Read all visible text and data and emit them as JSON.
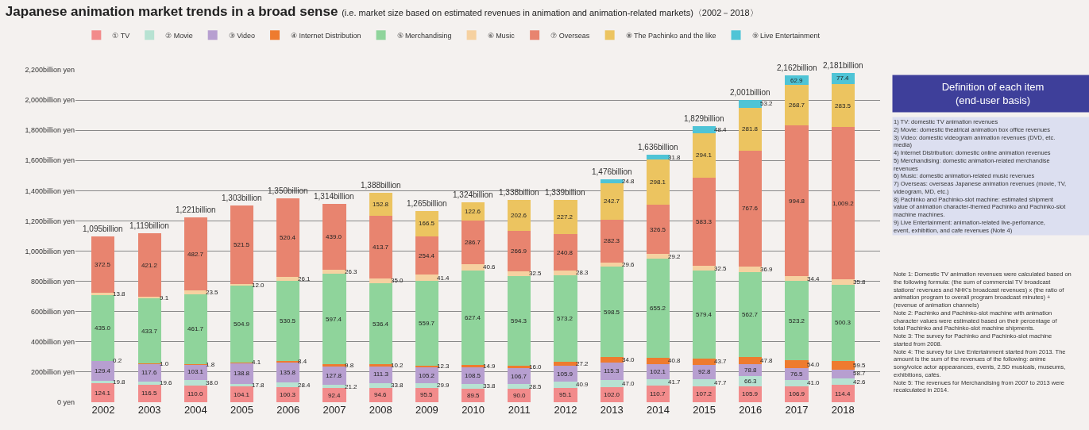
{
  "chart_data": {
    "type": "bar",
    "stacked": true,
    "title": "Japanese animation market trends in a broad sense",
    "subtitle": "(i.e. market size based on estimated revenues in animation and animation-related markets)〈2002－2018〉",
    "categories": [
      "2002",
      "2003",
      "2004",
      "2005",
      "2006",
      "2007",
      "2008",
      "2009",
      "2010",
      "2011",
      "2012",
      "2013",
      "2014",
      "2015",
      "2016",
      "2017",
      "2018"
    ],
    "series": [
      {
        "name": "① TV",
        "color": "#f28b8b",
        "values": [
          124.1,
          116.5,
          110.0,
          104.1,
          100.3,
          92.4,
          94.6,
          95.5,
          89.5,
          90.0,
          95.1,
          102.0,
          110.7,
          107.2,
          105.9,
          106.9,
          114.4
        ],
        "value_labels": [
          "124.1",
          "116.5",
          "110.0",
          "104.1",
          "100.3",
          "92.4",
          "94.6",
          "95.5",
          "89.5",
          "90.0",
          "95.1",
          "102.0",
          "110.7",
          "107.2",
          "105.9",
          "106.9",
          "114.4"
        ]
      },
      {
        "name": "② Movie",
        "color": "#b7e2d2",
        "values": [
          19.8,
          19.6,
          38.0,
          17.8,
          28.4,
          21.2,
          33.8,
          29.9,
          33.8,
          28.5,
          40.9,
          47.0,
          41.7,
          47.7,
          66.3,
          41.0,
          42.6
        ],
        "value_labels": [
          "19.8",
          "19.6",
          "38.0",
          "17.8",
          "28.4",
          "21.2",
          "33.8",
          "29.9",
          "33.8",
          "28.5",
          "40.9",
          "47.0",
          "41.7",
          "47.7",
          "66.3",
          "41.0",
          "42.6"
        ]
      },
      {
        "name": "③ Video",
        "color": "#b79fd0",
        "values": [
          129.4,
          117.6,
          103.1,
          138.8,
          135.8,
          127.8,
          111.3,
          105.2,
          108.5,
          106.7,
          105.9,
          115.3,
          102.1,
          92.8,
          78.8,
          76.5,
          58.7
        ],
        "value_labels": [
          "129.4",
          "117.6",
          "103.1",
          "138.8",
          "135.8",
          "127.8",
          "111.3",
          "105.2",
          "108.5",
          "106.7",
          "105.9",
          "115.3",
          "102.1",
          "92.8",
          "78.8",
          "76.5",
          "58.7"
        ]
      },
      {
        "name": "④ Internet Distribution",
        "color": "#ee7b2f",
        "values": [
          0.2,
          1.0,
          1.8,
          4.1,
          8.4,
          9.8,
          10.2,
          12.3,
          14.9,
          16.0,
          27.2,
          34.0,
          40.8,
          43.7,
          47.8,
          54.0,
          59.5
        ],
        "value_labels": [
          "0.2",
          "1.0",
          "1.8",
          "4.1",
          "8.4",
          "9.8",
          "10.2",
          "12.3",
          "14.9",
          "16.0",
          "27.2",
          "34.0",
          "40.8",
          "43.7",
          "47.8",
          "54.0",
          "59.5"
        ]
      },
      {
        "name": "⑤ Merchandising",
        "color": "#8fd49b",
        "values": [
          435.0,
          433.7,
          461.7,
          504.9,
          530.5,
          597.4,
          536.4,
          559.7,
          627.4,
          594.3,
          573.2,
          598.5,
          655.2,
          579.4,
          562.7,
          523.2,
          500.3
        ],
        "value_labels": [
          "435.0",
          "433.7",
          "461.7",
          "504.9",
          "530.5",
          "597.4",
          "536.4",
          "559.7",
          "627.4",
          "594.3",
          "573.2",
          "598.5",
          "655.2",
          "579.4",
          "562.7",
          "523.2",
          "500.3"
        ]
      },
      {
        "name": "⑥ Music",
        "color": "#f6d1a0",
        "values": [
          13.8,
          9.1,
          23.5,
          12.0,
          26.1,
          26.3,
          35.0,
          41.4,
          40.6,
          32.5,
          28.3,
          29.6,
          29.2,
          32.5,
          36.9,
          34.4,
          35.8
        ],
        "value_labels": [
          "13.8",
          "9.1",
          "23.5",
          "12.0",
          "26.1",
          "26.3",
          "35.0",
          "41.4",
          "40.6",
          "32.5",
          "28.3",
          "29.6",
          "29.2",
          "32.5",
          "36.9",
          "34.4",
          "35.8"
        ]
      },
      {
        "name": "⑦ Overseas",
        "color": "#e8846f",
        "values": [
          372.5,
          421.2,
          482.7,
          521.5,
          520.4,
          439.0,
          413.7,
          254.4,
          286.7,
          266.9,
          240.8,
          282.3,
          326.5,
          583.3,
          767.6,
          994.8,
          1009.2
        ],
        "value_labels": [
          "372.5",
          "421.2",
          "482.7",
          "521.5",
          "520.4",
          "439.0",
          "413.7",
          "254.4",
          "286.7",
          "266.9",
          "240.8",
          "282.3",
          "326.5",
          "583.3",
          "767.6",
          "994.8",
          "1,009.2"
        ]
      },
      {
        "name": "⑧ The Pachinko and the like",
        "color": "#ecc460",
        "values": [
          null,
          null,
          null,
          null,
          null,
          null,
          152.8,
          166.5,
          122.6,
          202.6,
          227.2,
          242.7,
          298.1,
          294.1,
          281.8,
          268.7,
          283.5
        ],
        "value_labels": [
          null,
          null,
          null,
          null,
          null,
          null,
          "152.8",
          "166.5",
          "122.6",
          "202.6",
          "227.2",
          "242.7",
          "298.1",
          "294.1",
          "281.8",
          "268.7",
          "283.5"
        ]
      },
      {
        "name": "⑨ Live Entertainment",
        "color": "#4fc4d6",
        "values": [
          null,
          null,
          null,
          null,
          null,
          null,
          null,
          null,
          null,
          null,
          null,
          24.8,
          31.8,
          48.4,
          53.2,
          62.9,
          77.4
        ],
        "value_labels": [
          null,
          null,
          null,
          null,
          null,
          null,
          null,
          null,
          null,
          null,
          null,
          "24.8",
          "31.8",
          "48.4",
          "53.2",
          "62.9",
          "77.4"
        ]
      }
    ],
    "totals": [
      "1,095billion",
      "1,119billion",
      "1,221billion",
      "1,303billion",
      "1,350billion",
      "1,314billion",
      "1,388billion",
      "1,265billion",
      "1,324billion",
      "1,338billion",
      "1,339billion",
      "1,476billion",
      "1,636billion",
      "1,829billion",
      "2,001billion",
      "2,162billion",
      "2,181billion"
    ],
    "ylim": [
      0,
      2200
    ],
    "yticks": [
      {
        "value": 0,
        "label": "0 yen"
      },
      {
        "value": 200,
        "label": "200billion yen"
      },
      {
        "value": 400,
        "label": "400billion yen"
      },
      {
        "value": 600,
        "label": "600billion yen"
      },
      {
        "value": 800,
        "label": "800billion yen"
      },
      {
        "value": 1000,
        "label": "1,000billion yen"
      },
      {
        "value": 1200,
        "label": "1,200billion yen"
      },
      {
        "value": 1400,
        "label": "1,400billion yen"
      },
      {
        "value": 1600,
        "label": "1,600billion yen"
      },
      {
        "value": 1800,
        "label": "1,800billion yen"
      },
      {
        "value": 2000,
        "label": "2,000billion yen"
      },
      {
        "value": 2200,
        "label": "2,200billion yen"
      }
    ],
    "grid": "y",
    "legend": "top",
    "annotations": [
      "Definition of each item (end-user basis)",
      "1) TV: domestic TV animation revenues",
      "2) Movie: domestic theatrical animation box office revenues",
      "3) Video: domestic videogram animation revenues (DVD, etc. media)",
      "4) Internet Distribution: domestic online animation revenues",
      "5) Merchandising: domestic animation-related merchandise revenues",
      "6) Music: domestic animation-related music revenues",
      "7) Overseas: overseas Japanese animation revenues (movie, TV, videogram, MD, etc.)",
      "8) Pachinko and Pachinko-slot machine: estimated shipment value of animation character-themed Pachinko and Pachinko-slot machine machines.",
      "9) Live Entertainment: animation-related live-perfomance, event, exhibition, and cafe revenues (Note 4)",
      "Note 1: Domestic TV animation revenues were calculated based on the following formula: (the sum of commercial TV broadcast stations' revenues and NHK's broadcast revenues) x (the ratio of animation program to overall program broadcast minutes) + (revenue of animation channels)",
      "Note 2: Pachinko and Pachinko-slot machine with animation character values were estimated based on their percentage of total Pachinko and Pachinko-slot machine shipments.",
      "Note 3: The survey for Pachinko and Pachinko-slot machine started from 2008.",
      "Note 4: The survey for Live Entertainment started from 2013. The amount is the sum of the revenues of the following: anime song/voice actor appearances, events, 2.5D musicals, museums, exhibitions, cafés.",
      "Note 5: The revenues for Merchandising from 2007 to 2013 were recalculated in 2014."
    ]
  }
}
